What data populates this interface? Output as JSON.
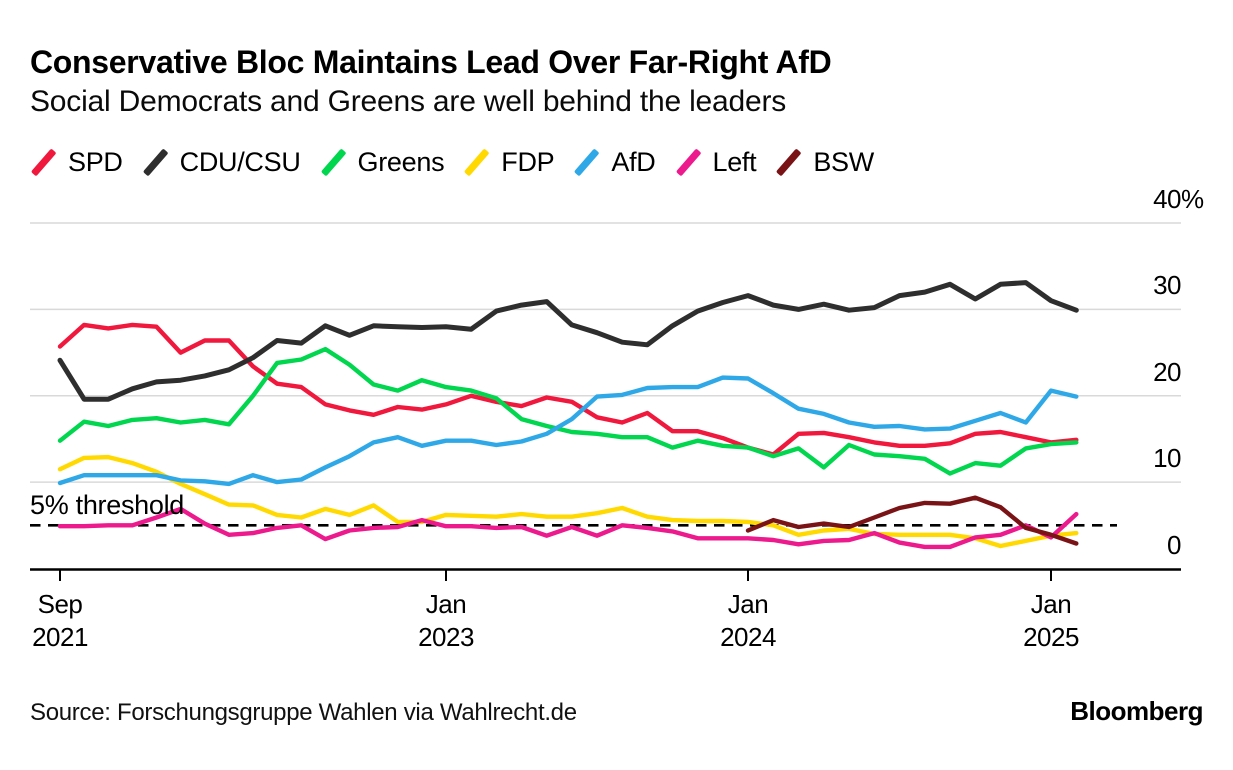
{
  "header": {
    "title": "Conservative Bloc Maintains Lead Over Far-Right AfD",
    "subtitle": "Social Democrats and Greens are well behind the leaders"
  },
  "legend": [
    {
      "label": "SPD",
      "color": "#f0183c"
    },
    {
      "label": "CDU/CSU",
      "color": "#2e2e2e"
    },
    {
      "label": "Greens",
      "color": "#00d64e"
    },
    {
      "label": "FDP",
      "color": "#ffd900"
    },
    {
      "label": "AfD",
      "color": "#2fa8e8"
    },
    {
      "label": "Left",
      "color": "#ed1a8e"
    },
    {
      "label": "BSW",
      "color": "#7a1316"
    }
  ],
  "threshold": {
    "label": "5% threshold",
    "value": 5
  },
  "footer": {
    "source": "Source: Forschungsgruppe Wahlen via Wahlrecht.de",
    "brand": "Bloomberg"
  },
  "chart_data": {
    "type": "line",
    "title": "Conservative Bloc Maintains Lead Over Far-Right AfD",
    "subtitle": "Social Democrats and Greens are well behind the leaders",
    "x_unit": "months, monthly samples from Sep 2021 to Feb 2025",
    "ylim": [
      0,
      40
    ],
    "grid": true,
    "legend_position": "top",
    "y_ticks": [
      {
        "value": 40,
        "label": "40",
        "suffix": "%"
      },
      {
        "value": 30,
        "label": "30",
        "suffix": ""
      },
      {
        "value": 20,
        "label": "20",
        "suffix": ""
      },
      {
        "value": 10,
        "label": "10",
        "suffix": ""
      },
      {
        "value": 0,
        "label": "0",
        "suffix": ""
      }
    ],
    "x_ticks": [
      {
        "month": 0,
        "line1": "Sep",
        "line2": "2021"
      },
      {
        "month": 16,
        "line1": "Jan",
        "line2": "2023"
      },
      {
        "month": 28,
        "line1": "Jan",
        "line2": "2024"
      },
      {
        "month": 40,
        "line1": "Jan",
        "line2": "2025"
      }
    ],
    "threshold_line": {
      "value": 5,
      "label": "5% threshold",
      "style": "dashed"
    },
    "series": [
      {
        "name": "SPD",
        "color": "#f0183c",
        "values": [
          25.7,
          28.2,
          27.8,
          28.2,
          28.0,
          25.0,
          26.4,
          26.4,
          23.4,
          21.4,
          21.0,
          19.0,
          18.3,
          17.8,
          18.7,
          18.4,
          19.0,
          20.0,
          19.3,
          18.8,
          19.8,
          19.3,
          17.5,
          16.9,
          18.0,
          15.9,
          15.9,
          15.1,
          14.0,
          13.2,
          15.6,
          15.7,
          15.2,
          14.6,
          14.2,
          14.2,
          14.5,
          15.6,
          15.8,
          15.2,
          14.6,
          14.9
        ]
      },
      {
        "name": "CDU/CSU",
        "color": "#2e2e2e",
        "values": [
          24.1,
          19.6,
          19.6,
          20.8,
          21.6,
          21.8,
          22.3,
          23.0,
          24.4,
          26.4,
          26.1,
          28.1,
          27.0,
          28.1,
          28.0,
          27.9,
          28.0,
          27.7,
          29.8,
          30.5,
          30.9,
          28.2,
          27.3,
          26.2,
          25.9,
          28.1,
          29.8,
          30.8,
          31.6,
          30.5,
          30.0,
          30.6,
          29.9,
          30.2,
          31.6,
          32.0,
          32.9,
          31.2,
          32.9,
          33.1,
          31.0,
          29.9
        ]
      },
      {
        "name": "Greens",
        "color": "#00d64e",
        "values": [
          14.8,
          17.0,
          16.5,
          17.2,
          17.4,
          16.9,
          17.2,
          16.7,
          20.0,
          23.8,
          24.2,
          25.4,
          23.6,
          21.3,
          20.6,
          21.8,
          21.0,
          20.6,
          19.7,
          17.3,
          16.5,
          15.8,
          15.6,
          15.2,
          15.2,
          14.0,
          14.8,
          14.2,
          14.0,
          13.0,
          13.9,
          11.7,
          14.3,
          13.2,
          13.0,
          12.7,
          11.0,
          12.2,
          11.9,
          13.9,
          14.4,
          14.6
        ]
      },
      {
        "name": "FDP",
        "color": "#ffd900",
        "values": [
          11.5,
          12.8,
          12.9,
          12.2,
          11.2,
          9.8,
          8.6,
          7.4,
          7.3,
          6.2,
          5.9,
          6.9,
          6.2,
          7.3,
          5.4,
          5.4,
          6.2,
          6.1,
          6.0,
          6.3,
          6.0,
          6.0,
          6.4,
          7.0,
          6.0,
          5.6,
          5.5,
          5.5,
          5.4,
          5.0,
          3.9,
          4.4,
          4.6,
          4.0,
          3.9,
          3.9,
          3.9,
          3.5,
          2.6,
          3.2,
          3.8,
          4.1
        ]
      },
      {
        "name": "AfD",
        "color": "#2fa8e8",
        "values": [
          9.9,
          10.8,
          10.8,
          10.8,
          10.8,
          10.2,
          10.1,
          9.8,
          10.8,
          10.0,
          10.3,
          11.7,
          13.0,
          14.6,
          15.2,
          14.2,
          14.8,
          14.8,
          14.3,
          14.7,
          15.6,
          17.3,
          19.9,
          20.1,
          20.9,
          21.0,
          21.0,
          22.1,
          22.0,
          20.3,
          18.5,
          17.9,
          16.9,
          16.4,
          16.5,
          16.1,
          16.2,
          17.1,
          18.0,
          16.9,
          20.6,
          19.9
        ]
      },
      {
        "name": "Left",
        "color": "#ed1a8e",
        "values": [
          4.9,
          4.9,
          5.0,
          5.0,
          5.9,
          6.9,
          5.2,
          3.9,
          4.1,
          4.7,
          5.0,
          3.4,
          4.4,
          4.7,
          4.8,
          5.6,
          4.9,
          4.9,
          4.7,
          4.8,
          3.8,
          4.8,
          3.8,
          5.0,
          4.7,
          4.3,
          3.5,
          3.5,
          3.5,
          3.3,
          2.8,
          3.2,
          3.3,
          4.1,
          3.0,
          2.5,
          2.5,
          3.6,
          3.9,
          5.0,
          3.6,
          6.3
        ]
      },
      {
        "name": "BSW",
        "color": "#7a1316",
        "values": [
          null,
          null,
          null,
          null,
          null,
          null,
          null,
          null,
          null,
          null,
          null,
          null,
          null,
          null,
          null,
          null,
          null,
          null,
          null,
          null,
          null,
          null,
          null,
          null,
          null,
          null,
          null,
          null,
          4.4,
          5.6,
          4.8,
          5.2,
          4.8,
          5.9,
          7.0,
          7.6,
          7.5,
          8.2,
          7.1,
          4.7,
          3.9,
          2.9
        ]
      }
    ]
  }
}
